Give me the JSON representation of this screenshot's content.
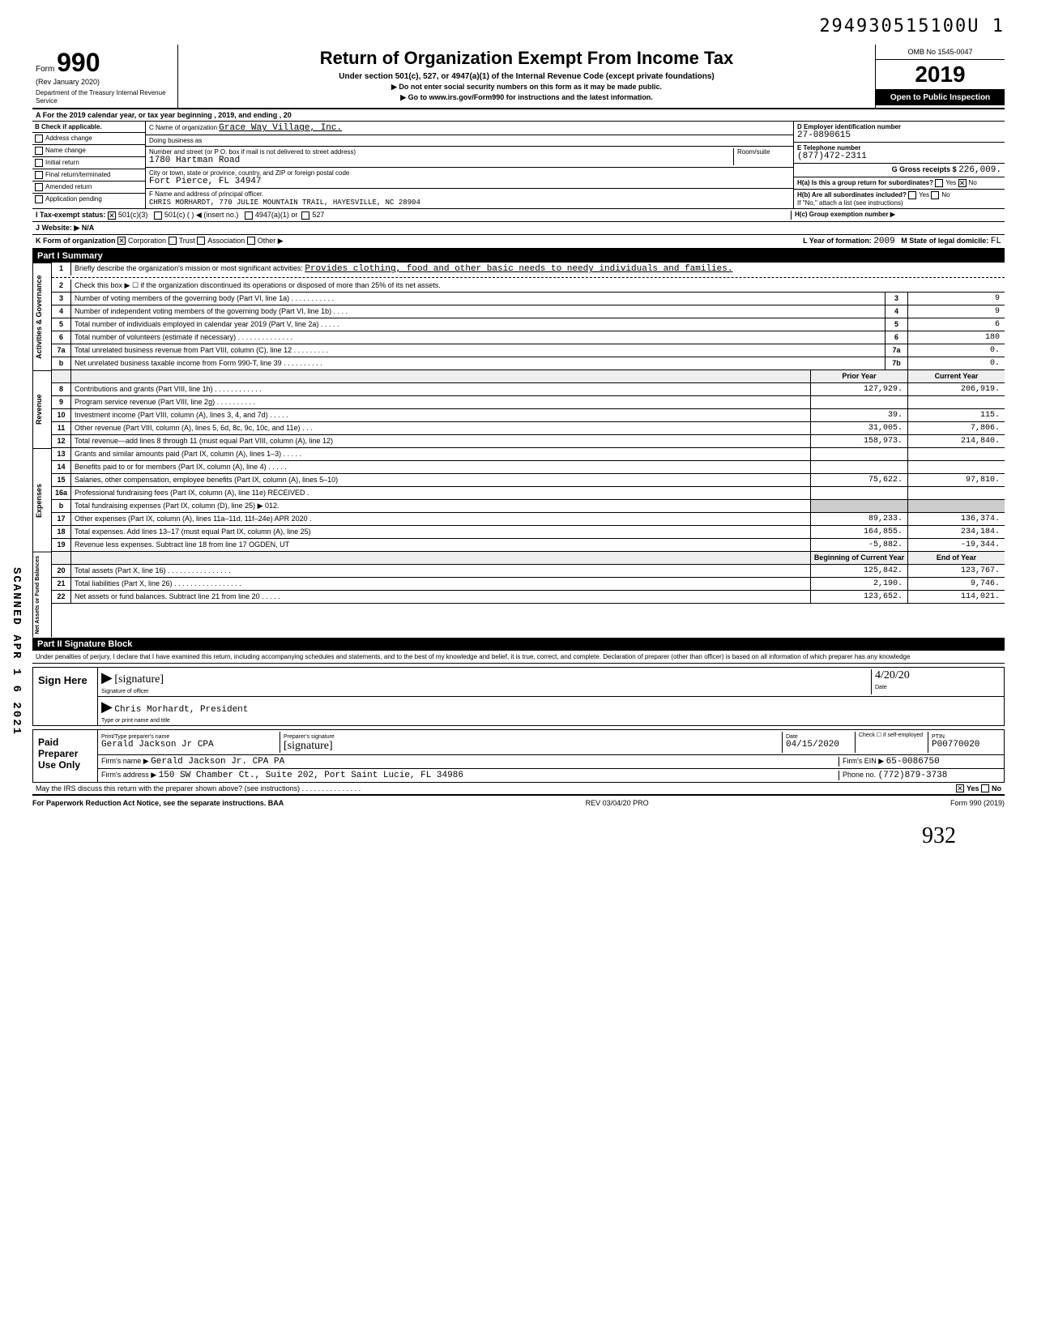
{
  "header_number": "294930515100U  1",
  "scanned_label": "SCANNED APR 1 6 2021",
  "top": {
    "form_word": "Form",
    "form_number": "990",
    "rev": "(Rev January 2020)",
    "dept": "Department of the Treasury\nInternal Revenue Service",
    "title": "Return of Organization Exempt From Income Tax",
    "subtitle": "Under section 501(c), 527, or 4947(a)(1) of the Internal Revenue Code (except private foundations)",
    "inst1": "▶ Do not enter social security numbers on this form as it may be made public.",
    "inst2": "▶ Go to www.irs.gov/Form990 for instructions and the latest information.",
    "omb": "OMB No 1545-0047",
    "year": "2019",
    "open": "Open to Public Inspection"
  },
  "rowA": "A    For the 2019 calendar year, or tax year beginning                                             , 2019, and ending                                  , 20",
  "sectionB": {
    "b_label": "B   Check if applicable.",
    "checks": [
      "Address change",
      "Name change",
      "Initial return",
      "Final return/terminated",
      "Amended return",
      "Application pending"
    ],
    "c_name_label": "C Name of organization",
    "c_name": "Grace Way Village, Inc.",
    "dba_label": "Doing business as",
    "addr_label": "Number and street (or P O. box if mail is not delivered to street address)",
    "addr": "1780 Hartman Road",
    "room_label": "Room/suite",
    "city_label": "City or town, state or province, country, and ZIP or foreign postal code",
    "city": "Fort Pierce, FL 34947",
    "f_label": "F Name and address of principal officer.",
    "f_name": "CHRIS MORHARDT, 770 JULIE MOUNTAIN TRAIL, HAYESVILLE, NC 28904",
    "d_label": "D Employer identification number",
    "d_val": "27-0890615",
    "e_label": "E Telephone number",
    "e_val": "(877)472-2311",
    "g_label": "G Gross receipts $",
    "g_val": "226,009.",
    "ha_label": "H(a) Is this a group return for subordinates?",
    "ha_yes": "Yes",
    "ha_no": "No",
    "hb_label": "H(b) Are all subordinates included?",
    "hb_note": "If \"No,\" attach a list (see instructions)",
    "hc_label": "H(c) Group exemption number ▶"
  },
  "rowI": {
    "label": "I     Tax-exempt status:",
    "opt1": "501(c)(3)",
    "opt2": "501(c) (          ) ◀ (insert no.)",
    "opt3": "4947(a)(1) or",
    "opt4": "527"
  },
  "rowJ": "J     Website: ▶  N/A",
  "rowK": {
    "label": "K    Form of organization",
    "opts": [
      "Corporation",
      "Trust",
      "Association",
      "Other ▶"
    ],
    "year_label": "L Year of formation:",
    "year_val": "2009",
    "state_label": "M State of legal domicile:",
    "state_val": "FL"
  },
  "part1": {
    "header": "Part I     Summary",
    "line1_label": "Briefly describe the organization's mission or most significant activities:",
    "line1_val": "Provides clothing, food and other basic needs to needy individuals and families.",
    "line2": "Check this box ▶ ☐ if the organization discontinued its operations or disposed of more than 25% of its net assets.",
    "lines_gov": [
      {
        "n": "3",
        "d": "Number of voting members of the governing body (Part VI, line 1a) . . . . . . . . . . .",
        "num": "3",
        "v": "9"
      },
      {
        "n": "4",
        "d": "Number of independent voting members of the governing body (Part VI, line 1b) . . . .",
        "num": "4",
        "v": "9"
      },
      {
        "n": "5",
        "d": "Total number of individuals employed in calendar year 2019 (Part V, line 2a)    . . . . .",
        "num": "5",
        "v": "6"
      },
      {
        "n": "6",
        "d": "Total number of volunteers (estimate if necessary)    . . . . . . . . . . . . . .",
        "num": "6",
        "v": "180"
      },
      {
        "n": "7a",
        "d": "Total unrelated business revenue from Part VIII, column (C), line 12   . . . . . . . . .",
        "num": "7a",
        "v": "0."
      },
      {
        "n": "b",
        "d": "Net unrelated business taxable income from Form 990-T, line 39   . . . . . . . . . .",
        "num": "7b",
        "v": "0."
      }
    ],
    "prior_hdr": "Prior Year",
    "curr_hdr": "Current Year",
    "lines_rev": [
      {
        "n": "8",
        "d": "Contributions and grants (Part VIII, line 1h) . . . . . . . . . . . .",
        "p": "127,929.",
        "c": "206,919."
      },
      {
        "n": "9",
        "d": "Program service revenue (Part VIII, line 2g)     . . . . . . . . . .",
        "p": "",
        "c": ""
      },
      {
        "n": "10",
        "d": "Investment income (Part VIII, column (A), lines 3, 4, and 7d)  . . . . .",
        "p": "39.",
        "c": "115."
      },
      {
        "n": "11",
        "d": "Other revenue (Part VIII, column (A), lines 5, 6d, 8c, 9c, 10c, and 11e) . . .",
        "p": "31,005.",
        "c": "7,806."
      },
      {
        "n": "12",
        "d": "Total revenue—add lines 8 through 11 (must equal Part VIII, column (A), line 12)",
        "p": "158,973.",
        "c": "214,840."
      }
    ],
    "lines_exp": [
      {
        "n": "13",
        "d": "Grants and similar amounts paid (Part IX, column (A), lines 1–3) . . . . .",
        "p": "",
        "c": ""
      },
      {
        "n": "14",
        "d": "Benefits paid to or for members (Part IX, column (A), line 4)   . . . . .",
        "p": "",
        "c": ""
      },
      {
        "n": "15",
        "d": "Salaries, other compensation, employee benefits (Part IX, column (A), lines 5–10)",
        "p": "75,622.",
        "c": "97,810."
      },
      {
        "n": "16a",
        "d": "Professional fundraising fees (Part IX, column (A), line 11e)  RECEIVED .",
        "p": "",
        "c": ""
      },
      {
        "n": "b",
        "d": "Total fundraising expenses (Part IX, column (D), line 25) ▶            012.",
        "p": "gray",
        "c": "gray"
      },
      {
        "n": "17",
        "d": "Other expenses (Part IX, column (A), lines 11a–11d, 11f–24e)  APR  2020 .",
        "p": "89,233.",
        "c": "136,374."
      },
      {
        "n": "18",
        "d": "Total expenses. Add lines 13–17 (must equal Part IX, column (A), line 25)",
        "p": "164,855.",
        "c": "234,184."
      },
      {
        "n": "19",
        "d": "Revenue less expenses. Subtract line 18 from line 17  OGDEN, UT",
        "p": "-5,882.",
        "c": "-19,344."
      }
    ],
    "begin_hdr": "Beginning of Current Year",
    "end_hdr": "End of Year",
    "lines_net": [
      {
        "n": "20",
        "d": "Total assets (Part X, line 16)    . . . . . . . . . . . . . . . .",
        "p": "125,842.",
        "c": "123,767."
      },
      {
        "n": "21",
        "d": "Total liabilities (Part X, line 26) . . . . . . . . . . . . . . . . .",
        "p": "2,190.",
        "c": "9,746."
      },
      {
        "n": "22",
        "d": "Net assets or fund balances. Subtract line 21 from line 20     . . . . .",
        "p": "123,652.",
        "c": "114,021."
      }
    ],
    "side_gov": "Activities & Governance",
    "side_rev": "Revenue",
    "side_exp": "Expenses",
    "side_net": "Net Assets or Fund Balances"
  },
  "part2": {
    "header": "Part II    Signature Block",
    "perjury": "Under penalties of perjury, I declare that I have examined this return, including accompanying schedules and statements, and to the best of my knowledge and belief, it is true, correct, and complete. Declaration of preparer (other than officer) is based on all information of which preparer has any knowledge",
    "sign_label": "Sign Here",
    "sig_officer_sub": "Signature of officer",
    "sig_date_sub": "Date",
    "sig_date": "4/20/20",
    "name_title": "Chris Morhardt, President",
    "name_title_sub": "Type or print name and title",
    "paid_label": "Paid Preparer Use Only",
    "prep_name_label": "Print/Type preparer's name",
    "prep_name": "Gerald Jackson Jr CPA",
    "prep_sig_label": "Preparer's signature",
    "prep_date_label": "Date",
    "prep_date": "04/15/2020",
    "check_label": "Check ☐ if self-employed",
    "ptin_label": "PTIN",
    "ptin": "P00770020",
    "firm_name_label": "Firm's name   ▶",
    "firm_name": "Gerald Jackson Jr. CPA PA",
    "firm_ein_label": "Firm's EIN ▶",
    "firm_ein": "65-0086750",
    "firm_addr_label": "Firm's address ▶",
    "firm_addr": "150 SW Chamber Ct., Suite 202, Port Saint Lucie, FL 34986",
    "phone_label": "Phone no.",
    "phone": "(772)879-3738",
    "discuss": "May the IRS discuss this return with the preparer shown above? (see instructions) . . . . . . . . . . . . . . .",
    "yes": "Yes",
    "no": "No"
  },
  "footer": {
    "left": "For Paperwork Reduction Act Notice, see the separate instructions. BAA",
    "mid": "REV 03/04/20 PRO",
    "right": "Form 990 (2019)"
  },
  "page_num": "932"
}
